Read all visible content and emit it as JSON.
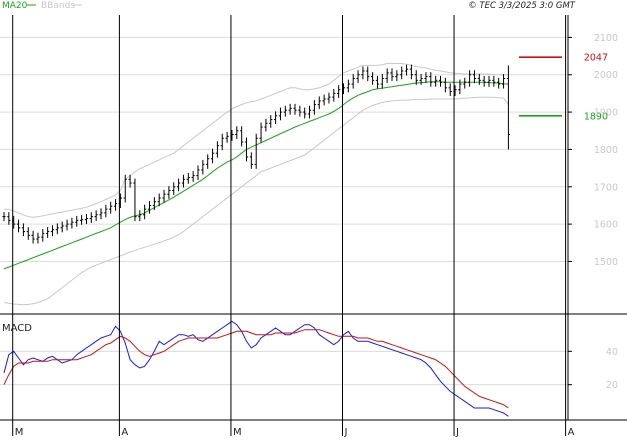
{
  "legend": {
    "ma_label": "MA20",
    "bb_label": "BBands"
  },
  "copyright": "© TEC 3/3/2025 3:0 GMT",
  "colors": {
    "ma": "#1aa31a",
    "bbands": "#c8c8c8",
    "price": "#000000",
    "macd": "#1a1ae6",
    "signal": "#cc1111",
    "resistance": "#cc1111",
    "support": "#1aa31a",
    "grid": "#dcdcdc",
    "axis_text": "#c8c8c8"
  },
  "chart_data": [
    {
      "type": "ohlc",
      "title": "",
      "ylim": [
        1370,
        2160
      ],
      "yticks": [
        1500,
        1600,
        1700,
        1800,
        1900,
        2000,
        2100
      ],
      "grid": true,
      "legend_position": "top-left",
      "x_month_labels": [
        "M",
        "A",
        "M",
        "J",
        "J",
        "A"
      ],
      "x_month_label_at_bar": [
        2,
        24,
        47,
        70,
        93,
        116
      ],
      "levels": [
        {
          "name": "resistance",
          "value": 2047,
          "label": "2047",
          "color": "#cc1111"
        },
        {
          "name": "support",
          "value": 1890,
          "label": "1890",
          "color": "#1aa31a"
        }
      ],
      "close": [
        1620,
        1610,
        1600,
        1590,
        1580,
        1570,
        1560,
        1565,
        1575,
        1580,
        1585,
        1590,
        1595,
        1600,
        1605,
        1610,
        1612,
        1615,
        1620,
        1625,
        1630,
        1640,
        1648,
        1655,
        1670,
        1720,
        1710,
        1620,
        1625,
        1640,
        1650,
        1660,
        1670,
        1680,
        1690,
        1700,
        1710,
        1720,
        1725,
        1730,
        1745,
        1760,
        1775,
        1790,
        1810,
        1830,
        1835,
        1840,
        1850,
        1820,
        1780,
        1760,
        1830,
        1860,
        1870,
        1880,
        1890,
        1900,
        1905,
        1910,
        1905,
        1900,
        1895,
        1905,
        1920,
        1930,
        1935,
        1940,
        1950,
        1960,
        1965,
        1975,
        1990,
        2000,
        2010,
        1995,
        1985,
        1975,
        1990,
        2005,
        1995,
        2000,
        2010,
        2015,
        2000,
        1985,
        1990,
        1995,
        1980,
        1985,
        1980,
        1965,
        1955,
        1960,
        1975,
        1980,
        2000,
        1990,
        1985,
        1980,
        1985,
        1980,
        1975,
        1990,
        1840
      ],
      "ma20": [
        1480,
        1485,
        1490,
        1495,
        1500,
        1505,
        1510,
        1515,
        1520,
        1525,
        1530,
        1535,
        1540,
        1545,
        1550,
        1555,
        1560,
        1565,
        1570,
        1575,
        1580,
        1585,
        1590,
        1598,
        1605,
        1612,
        1618,
        1622,
        1625,
        1630,
        1637,
        1644,
        1651,
        1658,
        1665,
        1672,
        1680,
        1688,
        1696,
        1704,
        1712,
        1720,
        1730,
        1740,
        1750,
        1758,
        1766,
        1772,
        1780,
        1790,
        1800,
        1806,
        1812,
        1818,
        1824,
        1830,
        1836,
        1842,
        1848,
        1854,
        1860,
        1865,
        1870,
        1875,
        1880,
        1885,
        1890,
        1895,
        1902,
        1910,
        1920,
        1930,
        1938,
        1945,
        1950,
        1955,
        1960,
        1962,
        1964,
        1966,
        1968,
        1970,
        1972,
        1974,
        1976,
        1978,
        1979,
        1980,
        1981,
        1981,
        1981,
        1980,
        1980,
        1980,
        1980,
        1980,
        1980,
        1980,
        1980,
        1980,
        1979,
        1978,
        1978,
        1976,
        1975
      ],
      "bb_upper": [
        1640,
        1640,
        1635,
        1630,
        1625,
        1620,
        1618,
        1620,
        1622,
        1625,
        1628,
        1630,
        1632,
        1635,
        1637,
        1640,
        1642,
        1645,
        1650,
        1655,
        1660,
        1666,
        1672,
        1678,
        1690,
        1720,
        1730,
        1740,
        1748,
        1754,
        1760,
        1766,
        1772,
        1778,
        1784,
        1790,
        1800,
        1810,
        1820,
        1830,
        1840,
        1850,
        1860,
        1870,
        1880,
        1890,
        1900,
        1908,
        1915,
        1920,
        1925,
        1928,
        1930,
        1935,
        1940,
        1945,
        1950,
        1955,
        1960,
        1965,
        1965,
        1962,
        1960,
        1960,
        1962,
        1965,
        1970,
        1975,
        1985,
        1995,
        2005,
        2010,
        2015,
        2020,
        2025,
        2025,
        2025,
        2025,
        2027,
        2030,
        2030,
        2030,
        2030,
        2028,
        2025,
        2022,
        2020,
        2018,
        2015,
        2012,
        2010,
        2008,
        2005,
        2004,
        2003,
        2002,
        2002,
        2002,
        2002,
        2002,
        2002,
        2000,
        2000,
        2000,
        2000
      ],
      "bb_lower": [
        1390,
        1388,
        1386,
        1385,
        1384,
        1385,
        1387,
        1390,
        1395,
        1400,
        1410,
        1420,
        1430,
        1440,
        1450,
        1460,
        1470,
        1478,
        1485,
        1490,
        1495,
        1500,
        1505,
        1510,
        1515,
        1520,
        1525,
        1530,
        1534,
        1538,
        1542,
        1546,
        1550,
        1555,
        1560,
        1565,
        1572,
        1580,
        1590,
        1600,
        1610,
        1620,
        1630,
        1640,
        1650,
        1660,
        1670,
        1680,
        1690,
        1700,
        1710,
        1720,
        1730,
        1740,
        1745,
        1750,
        1755,
        1760,
        1765,
        1770,
        1775,
        1780,
        1785,
        1795,
        1805,
        1815,
        1825,
        1835,
        1845,
        1855,
        1865,
        1875,
        1885,
        1895,
        1905,
        1912,
        1918,
        1922,
        1926,
        1928,
        1930,
        1931,
        1932,
        1932,
        1933,
        1934,
        1934,
        1934,
        1935,
        1935,
        1935,
        1935,
        1935,
        1935,
        1936,
        1937,
        1938,
        1939,
        1940,
        1940,
        1940,
        1940,
        1938,
        1938,
        1920
      ]
    },
    {
      "type": "line",
      "title": "MACD",
      "ylim": [
        0,
        60
      ],
      "yticks": [
        20,
        40
      ],
      "grid": true,
      "series": [
        {
          "name": "",
          "role": "macd",
          "values": [
            27,
            38,
            40,
            36,
            32,
            35,
            36,
            35,
            34,
            36,
            37,
            35,
            33,
            34,
            35,
            38,
            40,
            42,
            44,
            46,
            48,
            49,
            50,
            55,
            52,
            45,
            35,
            32,
            30,
            31,
            35,
            40,
            46,
            44,
            46,
            48,
            50,
            50,
            49,
            50,
            47,
            46,
            48,
            50,
            52,
            54,
            56,
            58,
            56,
            52,
            46,
            42,
            44,
            48,
            50,
            52,
            54,
            52,
            50,
            50,
            52,
            54,
            56,
            56,
            54,
            50,
            48,
            46,
            44,
            46,
            50,
            52,
            48,
            46,
            46,
            46,
            45,
            44,
            43,
            42,
            41,
            40,
            39,
            38,
            37,
            36,
            35,
            33,
            30,
            26,
            22,
            19,
            16,
            14,
            12,
            10,
            8,
            6,
            6,
            6,
            6,
            5,
            4,
            3,
            1
          ]
        },
        {
          "name": "",
          "role": "signal",
          "values": [
            20,
            26,
            31,
            33,
            33,
            33,
            34,
            34,
            34,
            34,
            35,
            35,
            35,
            35,
            35,
            35,
            36,
            37,
            38,
            40,
            42,
            44,
            45,
            47,
            49,
            48,
            46,
            43,
            40,
            38,
            37,
            38,
            39,
            40,
            42,
            44,
            46,
            47,
            48,
            48,
            48,
            48,
            48,
            48,
            48,
            49,
            50,
            51,
            52,
            52,
            52,
            51,
            50,
            50,
            50,
            50,
            51,
            51,
            51,
            51,
            51,
            52,
            53,
            53,
            53,
            53,
            52,
            51,
            50,
            49,
            49,
            49,
            49,
            48,
            48,
            48,
            47,
            46,
            46,
            45,
            44,
            43,
            42,
            41,
            40,
            39,
            38,
            37,
            36,
            35,
            33,
            31,
            28,
            25,
            22,
            19,
            17,
            15,
            13,
            12,
            11,
            10,
            9,
            8,
            6
          ]
        }
      ]
    }
  ]
}
